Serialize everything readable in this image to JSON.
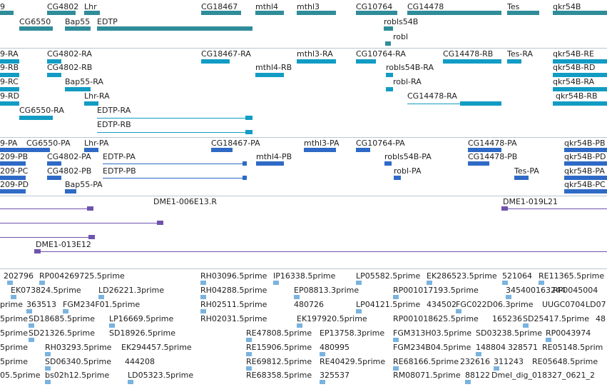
{
  "colors": {
    "gene": "#2f8d99",
    "transcript": "#129cc4",
    "cds": "#2e6ac6",
    "clone": "#6f53ad",
    "est": "#7ab3df",
    "separator": "#bcc7d0"
  },
  "tracks": {
    "genes": {
      "labels": [
        "9",
        "CG4802",
        "Lhr",
        "CG18467",
        "mthl4",
        "mthl3",
        "CG10764",
        "CG14478",
        "Tes",
        "qkr54B",
        "CG6550",
        "Bap55",
        "EDTP",
        "robls54B",
        "robl"
      ]
    },
    "transcripts": {
      "labels": [
        "9-RA",
        "CG4802-RA",
        "CG18467-RA",
        "mthl3-RA",
        "CG10764-RA",
        "CG14478-RB",
        "Tes-RA",
        "qkr54B-RE",
        "9-RB",
        "CG4802-RB",
        "mthl4-RB",
        "robls54B-RA",
        "qkr54B-RD",
        "9-RC",
        "Bap55-RA",
        "robl-RA",
        "qkr54B-RA",
        "9-RD",
        "Lhr-RA",
        "CG14478-RA",
        "qkr54B-RB",
        "CG6550-RA",
        "EDTP-RA",
        "EDTP-RB"
      ]
    },
    "proteins": {
      "labels": [
        "9-PA",
        "CG6550-PA",
        "Lhr-PA",
        "CG18467-PA",
        "mthl3-PA",
        "CG10764-PA",
        "CG14478-PA",
        "qkr54B-PB",
        "209-PB",
        "CG4802-PA",
        "EDTP-PA",
        "mthl4-PB",
        "robls54B-PA",
        "CG14478-PB",
        "qkr54B-PD",
        "209-PC",
        "CG4802-PB",
        "EDTP-PB",
        "robl-PA",
        "Tes-PA",
        "qkr54B-PA",
        "209-PD",
        "Bap55-PA",
        "qkr54B-PC"
      ]
    },
    "clones": {
      "labels": [
        "DME1-006E13.R",
        "DME1-019L21",
        "DME1-013E12"
      ]
    },
    "ests": {
      "labels": [
        "202796",
        "RP004269725.5prime",
        "RH03096.5prime",
        "IP16338.5prime",
        "LP05582.5prime",
        "EK286523.5prime",
        "521064",
        "RE11365.5prime",
        "EK073824.5prime",
        "LD26221.3prime",
        "RH04288.5prime",
        "EP08813.3prime",
        "RP001017193.5prime",
        "345400163244",
        "RP0045004",
        "prime",
        "363513",
        "FGM234F01.5prime",
        "RH02511.5prime",
        "480726",
        "LP04121.5prime",
        "434502",
        "FGC022D06.3prime",
        "UUGC0704",
        "LD07",
        "5prime",
        "SD18685.5prime",
        "LP16669.5prime",
        "RH02031.5prime",
        "EK197920.5prime",
        "RP001018625.5prime",
        "165236",
        "SD25417.5prime",
        "48",
        "5prime",
        "SD21326.5prime",
        "SD18926.5prime",
        "RE47808.5prime",
        "EP13758.3prime",
        "FGM313H03.5prime",
        "SD03238.5prime",
        "RP0043974",
        "5prime",
        "RH03293.5prime",
        "EK294457.5prime",
        "RE15906.5prime",
        "480995",
        "FGM234B04.5prime",
        "148804",
        "328571",
        "RE05148.5prim",
        "5prime",
        "SD06340.5prime",
        "444208",
        "RE69812.5prime",
        "RE40429.5prime",
        "RE68166.5prime",
        "232616",
        "311243",
        "RE05648.5prime",
        "05.5prime",
        "bs02h12.5prime",
        "LD05323.5prime",
        "RE68358.5prime",
        "325537",
        "RM08071.5prime",
        "88122",
        "Dmel_dig_018327_0621_2"
      ]
    }
  }
}
